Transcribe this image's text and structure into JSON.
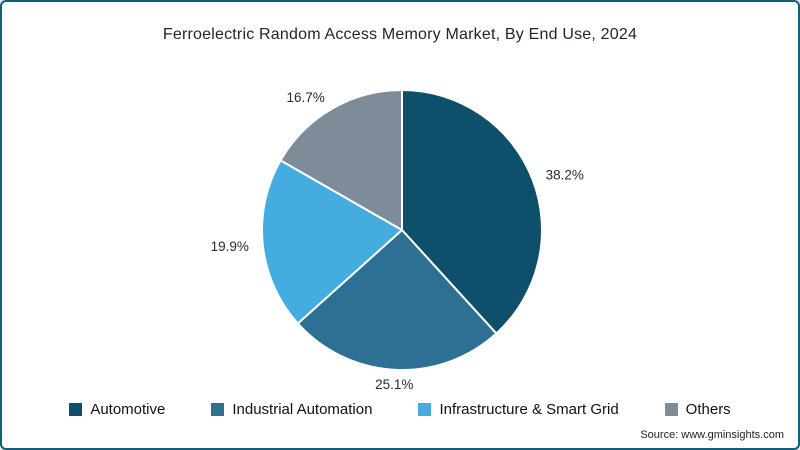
{
  "meta": {
    "source": "Source: www.gminsights.com"
  },
  "chart_data": {
    "type": "pie",
    "title": "Ferroelectric Random Access Memory Market, By End Use, 2024",
    "slices": [
      {
        "label": "Automotive",
        "value": 38.2,
        "display": "38.2%",
        "color": "#0e506b"
      },
      {
        "label": "Industrial Automation",
        "value": 25.1,
        "display": "25.1%",
        "color": "#2e7093"
      },
      {
        "label": "Infrastructure & Smart Grid",
        "value": 19.9,
        "display": "19.9%",
        "color": "#45ace0"
      },
      {
        "label": "Others",
        "value": 16.7,
        "display": "16.7%",
        "color": "#7e8b99"
      }
    ],
    "start_angle_deg": 0,
    "direction": "clockwise",
    "slice_stroke": "#ffffff",
    "legend_position": "bottom",
    "frame_border_color": "#0f5f7d"
  }
}
